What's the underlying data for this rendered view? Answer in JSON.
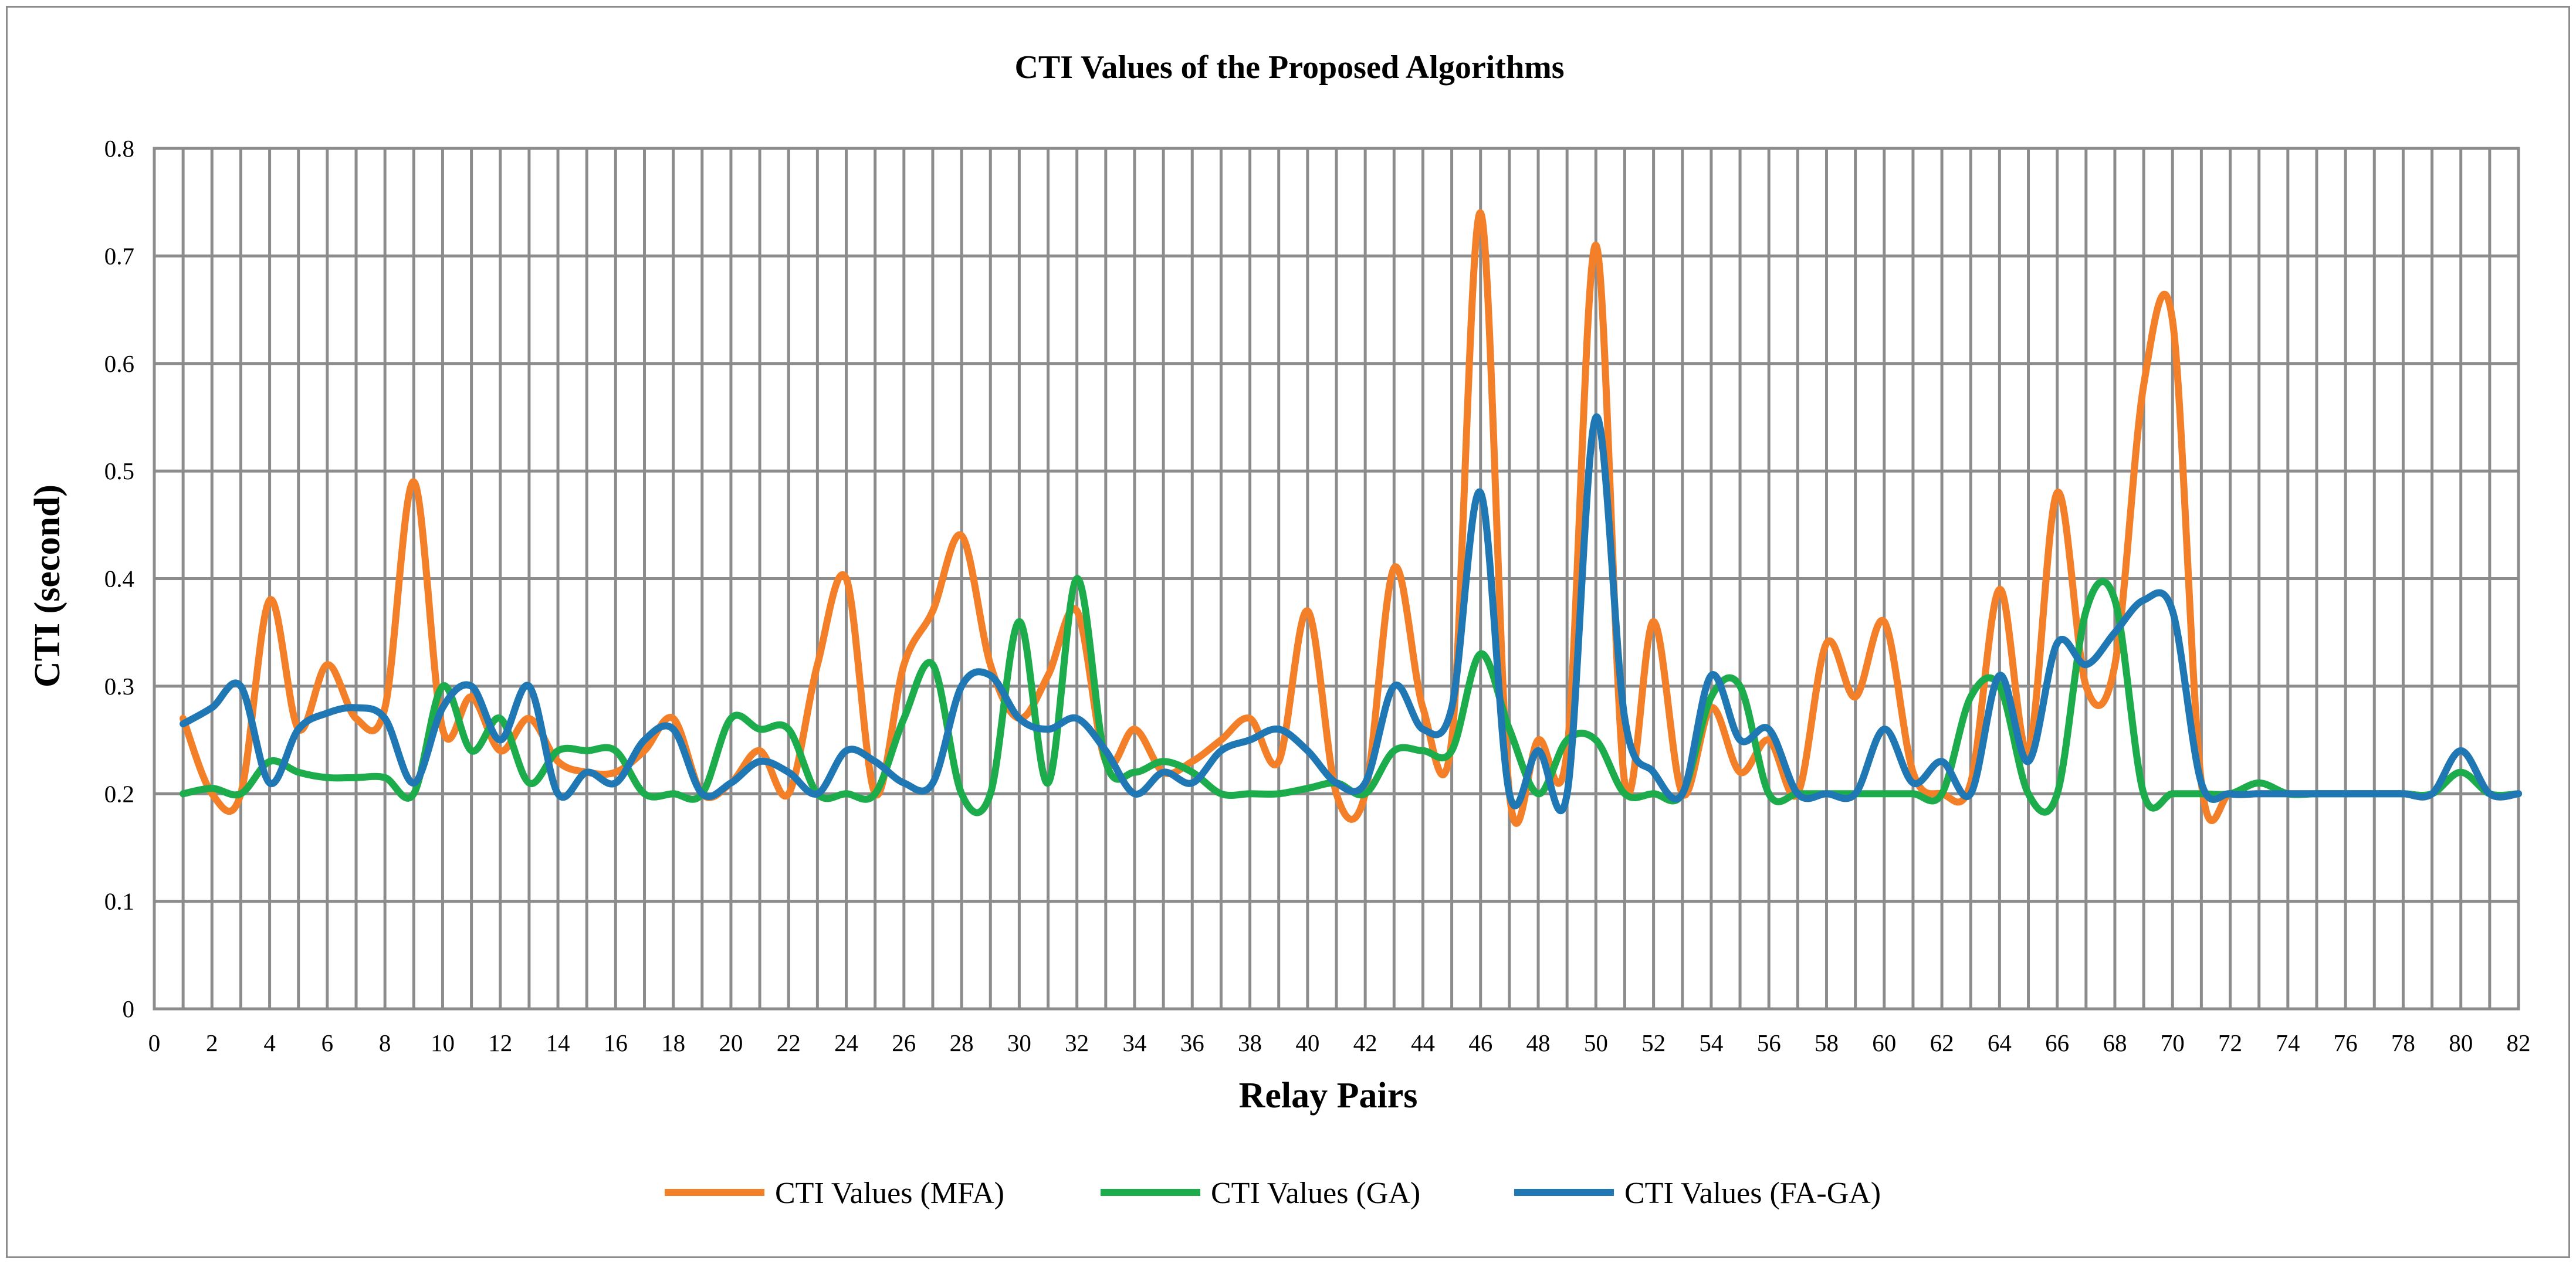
{
  "chart_data": {
    "type": "line",
    "title": "CTI Values of the Proposed Algorithms",
    "xlabel": "Relay Pairs",
    "ylabel": "CTI (second)",
    "xlim": [
      0,
      82
    ],
    "ylim": [
      0,
      0.8
    ],
    "x_ticks": [
      0,
      2,
      4,
      6,
      8,
      10,
      12,
      14,
      16,
      18,
      20,
      22,
      24,
      26,
      28,
      30,
      32,
      34,
      36,
      38,
      40,
      42,
      44,
      46,
      48,
      50,
      52,
      54,
      56,
      58,
      60,
      62,
      64,
      66,
      68,
      70,
      72,
      74,
      76,
      78,
      80,
      82
    ],
    "y_ticks": [
      0,
      0.1,
      0.2,
      0.3,
      0.4,
      0.5,
      0.6,
      0.7,
      0.8
    ],
    "grid": true,
    "legend_position": "bottom",
    "x": [
      1,
      2,
      3,
      4,
      5,
      6,
      7,
      8,
      9,
      10,
      11,
      12,
      13,
      14,
      15,
      16,
      17,
      18,
      19,
      20,
      21,
      22,
      23,
      24,
      25,
      26,
      27,
      28,
      29,
      30,
      31,
      32,
      33,
      34,
      35,
      36,
      37,
      38,
      39,
      40,
      41,
      42,
      43,
      44,
      45,
      46,
      47,
      48,
      49,
      50,
      51,
      52,
      53,
      54,
      55,
      56,
      57,
      58,
      59,
      60,
      61,
      62,
      63,
      64,
      65,
      66,
      67,
      68,
      69,
      70,
      71,
      72,
      73,
      74,
      75,
      76,
      77,
      78,
      79,
      80,
      81,
      82
    ],
    "series": [
      {
        "name": "CTI Values (MFA)",
        "color": "#f47f29",
        "values": [
          0.27,
          0.2,
          0.2,
          0.38,
          0.26,
          0.32,
          0.27,
          0.28,
          0.49,
          0.26,
          0.29,
          0.24,
          0.27,
          0.23,
          0.22,
          0.22,
          0.24,
          0.27,
          0.2,
          0.21,
          0.24,
          0.2,
          0.32,
          0.4,
          0.2,
          0.32,
          0.37,
          0.44,
          0.32,
          0.27,
          0.31,
          0.37,
          0.23,
          0.26,
          0.22,
          0.23,
          0.25,
          0.27,
          0.23,
          0.37,
          0.2,
          0.2,
          0.41,
          0.28,
          0.25,
          0.74,
          0.2,
          0.25,
          0.24,
          0.71,
          0.21,
          0.36,
          0.2,
          0.28,
          0.22,
          0.25,
          0.2,
          0.34,
          0.29,
          0.36,
          0.22,
          0.2,
          0.21,
          0.39,
          0.24,
          0.48,
          0.3,
          0.32,
          0.58,
          0.64,
          0.21,
          0.2,
          0.2,
          0.2,
          0.2,
          0.2,
          0.2,
          0.2,
          0.2,
          0.24,
          0.2,
          0.2
        ]
      },
      {
        "name": "CTI Values (GA)",
        "color": "#1dac4b",
        "values": [
          0.2,
          0.205,
          0.2,
          0.23,
          0.22,
          0.215,
          0.215,
          0.215,
          0.2,
          0.3,
          0.24,
          0.27,
          0.21,
          0.24,
          0.24,
          0.24,
          0.2,
          0.2,
          0.2,
          0.27,
          0.26,
          0.26,
          0.2,
          0.2,
          0.2,
          0.27,
          0.32,
          0.2,
          0.2,
          0.36,
          0.21,
          0.4,
          0.23,
          0.22,
          0.23,
          0.22,
          0.2,
          0.2,
          0.2,
          0.205,
          0.21,
          0.2,
          0.24,
          0.24,
          0.24,
          0.33,
          0.26,
          0.2,
          0.25,
          0.25,
          0.2,
          0.2,
          0.2,
          0.29,
          0.3,
          0.2,
          0.2,
          0.2,
          0.2,
          0.2,
          0.2,
          0.2,
          0.29,
          0.3,
          0.2,
          0.2,
          0.37,
          0.38,
          0.2,
          0.2,
          0.2,
          0.2,
          0.21,
          0.2,
          0.2,
          0.2,
          0.2,
          0.2,
          0.2,
          0.22,
          0.2,
          0.2
        ]
      },
      {
        "name": "CTI Values (FA-GA)",
        "color": "#1f77b4",
        "values": [
          0.265,
          0.28,
          0.3,
          0.21,
          0.26,
          0.275,
          0.28,
          0.27,
          0.21,
          0.28,
          0.3,
          0.25,
          0.3,
          0.2,
          0.22,
          0.21,
          0.25,
          0.26,
          0.2,
          0.21,
          0.23,
          0.22,
          0.2,
          0.24,
          0.23,
          0.21,
          0.21,
          0.3,
          0.31,
          0.27,
          0.26,
          0.27,
          0.24,
          0.2,
          0.22,
          0.21,
          0.24,
          0.25,
          0.26,
          0.24,
          0.21,
          0.21,
          0.3,
          0.26,
          0.28,
          0.48,
          0.2,
          0.24,
          0.2,
          0.55,
          0.27,
          0.22,
          0.2,
          0.31,
          0.25,
          0.26,
          0.2,
          0.2,
          0.2,
          0.26,
          0.21,
          0.23,
          0.2,
          0.31,
          0.23,
          0.34,
          0.32,
          0.35,
          0.38,
          0.37,
          0.21,
          0.2,
          0.2,
          0.2,
          0.2,
          0.2,
          0.2,
          0.2,
          0.2,
          0.24,
          0.2,
          0.2
        ]
      }
    ]
  }
}
